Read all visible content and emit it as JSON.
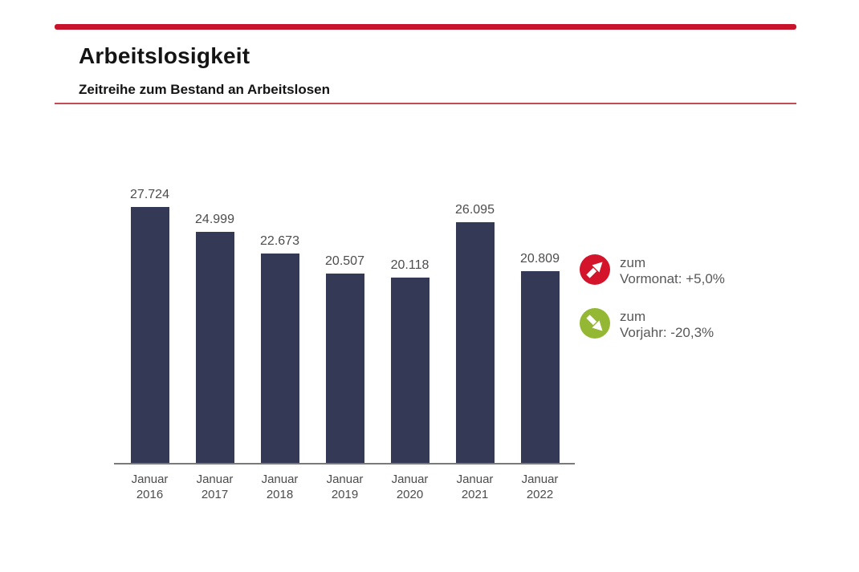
{
  "header": {
    "title": "Arbeitslosigkeit",
    "subtitle": "Zeitreihe zum Bestand an Arbeitslosen"
  },
  "chart_data": {
    "type": "bar",
    "title": "Zeitreihe zum Bestand an Arbeitslosen",
    "categories": [
      "Januar 2016",
      "Januar 2017",
      "Januar 2018",
      "Januar 2019",
      "Januar 2020",
      "Januar 2021",
      "Januar 2022"
    ],
    "values": [
      27724,
      24999,
      22673,
      20507,
      20118,
      26095,
      20809
    ],
    "value_labels": [
      "27.724",
      "24.999",
      "22.673",
      "20.507",
      "20.118",
      "26.095",
      "20.809"
    ],
    "xlabel": "",
    "ylabel": "",
    "ylim": [
      0,
      28000
    ],
    "grid": false,
    "legend": false,
    "bar_color": "#343a55"
  },
  "indicators": [
    {
      "line1": "zum",
      "line2": "Vormonat: +5,0%",
      "trend": "up",
      "color": "#d4142b"
    },
    {
      "line1": "zum",
      "line2": "Vorjahr: -20,3%",
      "trend": "down",
      "color": "#94b833"
    }
  ],
  "colors": {
    "accent_red": "#c8142a",
    "divider_red": "#c44b55",
    "bar": "#343a55",
    "axis_line": "#7a7a7a",
    "label_text": "#4d4d4d"
  }
}
